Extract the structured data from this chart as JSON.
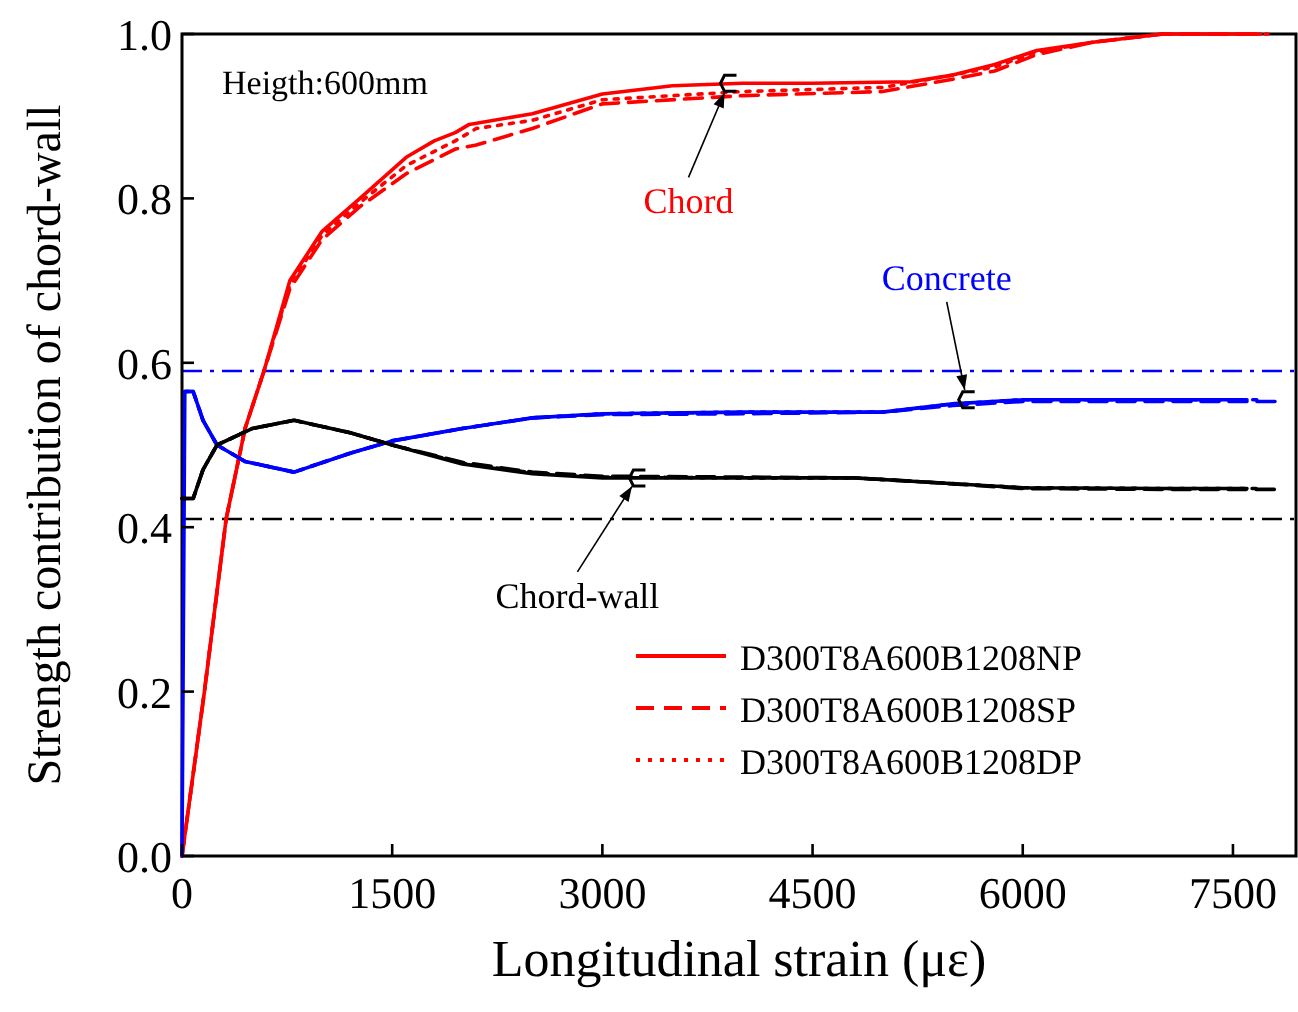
{
  "chart_data": {
    "type": "line",
    "xlabel": "Longitudinal strain (με)",
    "ylabel": "Strength contribution of chord-wall",
    "xlim": [
      0,
      7950
    ],
    "xticks": [
      0,
      1500,
      3000,
      4500,
      6000,
      7500
    ],
    "ylim": [
      0,
      1.0
    ],
    "yticks": [
      {
        "value": 0,
        "label": "0.0"
      },
      0.2,
      0.4,
      0.6,
      0.8,
      {
        "value": 1,
        "label": "1.0"
      }
    ],
    "grid": false,
    "legend": "bottom right",
    "series": [
      {
        "name": "D300T8A600B1208NP",
        "color": "#ff0000",
        "line_style": "solid",
        "x": [
          0,
          160,
          315,
          450,
          585,
          770,
          1000,
          1270,
          1600,
          1800,
          1950,
          2050,
          2500,
          3000,
          3500,
          4000,
          4500,
          5200,
          5500,
          5800,
          6100,
          6500,
          7000,
          7700
        ],
        "values": [
          0,
          0.2,
          0.41,
          0.52,
          0.59,
          0.7,
          0.76,
          0.8,
          0.85,
          0.87,
          0.88,
          0.89,
          0.903,
          0.927,
          0.937,
          0.94,
          0.94,
          0.942,
          0.95,
          0.963,
          0.98,
          0.99,
          1.0,
          1.0
        ]
      },
      {
        "name": "D300T8A600B1208SP",
        "color": "#ff0000",
        "line_style": "dashed",
        "x": [
          0,
          160,
          315,
          450,
          585,
          770,
          1000,
          1270,
          1600,
          1950,
          2100,
          2500,
          3000,
          4000,
          5000,
          5500,
          5800,
          6100,
          6500,
          7000,
          7750
        ],
        "values": [
          0,
          0.2,
          0.41,
          0.52,
          0.59,
          0.69,
          0.75,
          0.79,
          0.83,
          0.86,
          0.865,
          0.885,
          0.915,
          0.925,
          0.93,
          0.945,
          0.955,
          0.975,
          0.99,
          1.0,
          1.0
        ]
      },
      {
        "name": "D300T8A600B1208DP",
        "color": "#ff0000",
        "line_style": "dotted",
        "x": [
          0,
          160,
          315,
          450,
          585,
          770,
          1000,
          1270,
          1600,
          1950,
          2100,
          2500,
          3000,
          4000,
          5000,
          5500,
          5800,
          6100,
          6500,
          7000
        ],
        "values": [
          0,
          0.2,
          0.41,
          0.52,
          0.59,
          0.695,
          0.755,
          0.795,
          0.84,
          0.87,
          0.885,
          0.895,
          0.92,
          0.93,
          0.935,
          0.95,
          0.96,
          0.978,
          0.99,
          1.0
        ]
      },
      {
        "color": "#0000ff",
        "line_style": "solid",
        "x": [
          0,
          20,
          80,
          150,
          250,
          450,
          800,
          1200,
          1500,
          2000,
          2500,
          3000,
          4000,
          5000,
          5500,
          6000,
          6500,
          7600
        ],
        "values": [
          0,
          0.565,
          0.565,
          0.53,
          0.5,
          0.48,
          0.467,
          0.49,
          0.505,
          0.52,
          0.533,
          0.538,
          0.54,
          0.54,
          0.55,
          0.555,
          0.555,
          0.555
        ]
      },
      {
        "color": "#0000ff",
        "line_style": "dashed",
        "x": [
          20,
          80,
          150,
          250,
          450,
          800,
          1200,
          1500,
          2000,
          2500,
          3000,
          4000,
          5000,
          5500,
          6000,
          6500,
          7800
        ],
        "values": [
          0.565,
          0.565,
          0.53,
          0.5,
          0.48,
          0.467,
          0.49,
          0.505,
          0.52,
          0.533,
          0.537,
          0.538,
          0.54,
          0.548,
          0.553,
          0.553,
          0.553
        ]
      },
      {
        "color": "#0000ff",
        "line_style": "dotted",
        "x": [
          20,
          80,
          150,
          250,
          450,
          800,
          1200,
          1500,
          2000,
          2500,
          3000,
          4000,
          5000,
          5500,
          6000,
          6500,
          7700
        ],
        "values": [
          0.565,
          0.565,
          0.53,
          0.5,
          0.48,
          0.467,
          0.49,
          0.505,
          0.52,
          0.533,
          0.538,
          0.54,
          0.54,
          0.55,
          0.555,
          0.555,
          0.555
        ]
      },
      {
        "color": "#000000",
        "line_style": "solid",
        "x": [
          0,
          80,
          150,
          250,
          500,
          800,
          1200,
          1500,
          2000,
          2500,
          3000,
          4000,
          4800,
          5300,
          6000,
          7000,
          7600
        ],
        "values": [
          0.435,
          0.435,
          0.47,
          0.5,
          0.52,
          0.53,
          0.515,
          0.5,
          0.477,
          0.465,
          0.46,
          0.46,
          0.46,
          0.455,
          0.448,
          0.447,
          0.447
        ]
      },
      {
        "color": "#000000",
        "line_style": "dashed",
        "x": [
          0,
          80,
          150,
          250,
          500,
          800,
          1200,
          1500,
          2000,
          2500,
          3000,
          4000,
          4800,
          5300,
          6000,
          7000,
          7800
        ],
        "values": [
          0.435,
          0.435,
          0.47,
          0.5,
          0.52,
          0.53,
          0.515,
          0.5,
          0.479,
          0.467,
          0.462,
          0.461,
          0.46,
          0.455,
          0.447,
          0.446,
          0.446
        ]
      },
      {
        "color": "#000000",
        "line_style": "dotted",
        "x": [
          0,
          80,
          150,
          250,
          500,
          800,
          1200,
          1500,
          2000,
          2500,
          3000,
          4000,
          4800,
          5300,
          6000,
          7000,
          7700
        ],
        "values": [
          0.435,
          0.435,
          0.47,
          0.5,
          0.52,
          0.53,
          0.515,
          0.5,
          0.478,
          0.466,
          0.461,
          0.46,
          0.46,
          0.455,
          0.448,
          0.447,
          0.447
        ]
      }
    ],
    "ref_lines": [
      {
        "axis": "y",
        "value": 0.59,
        "color": "#0000ff",
        "line_style": "dashdot"
      },
      {
        "axis": "y",
        "value": 0.41,
        "color": "#000000",
        "line_style": "dashdot"
      }
    ],
    "annotations": [
      "Heigth:600mm",
      {
        "text": "Chord",
        "x": 3900,
        "y": 0.94
      },
      {
        "text": "Concrete",
        "x": 5600,
        "y": 0.555
      },
      {
        "text": "Chord-wall",
        "x": 3250,
        "y": 0.46
      }
    ]
  }
}
